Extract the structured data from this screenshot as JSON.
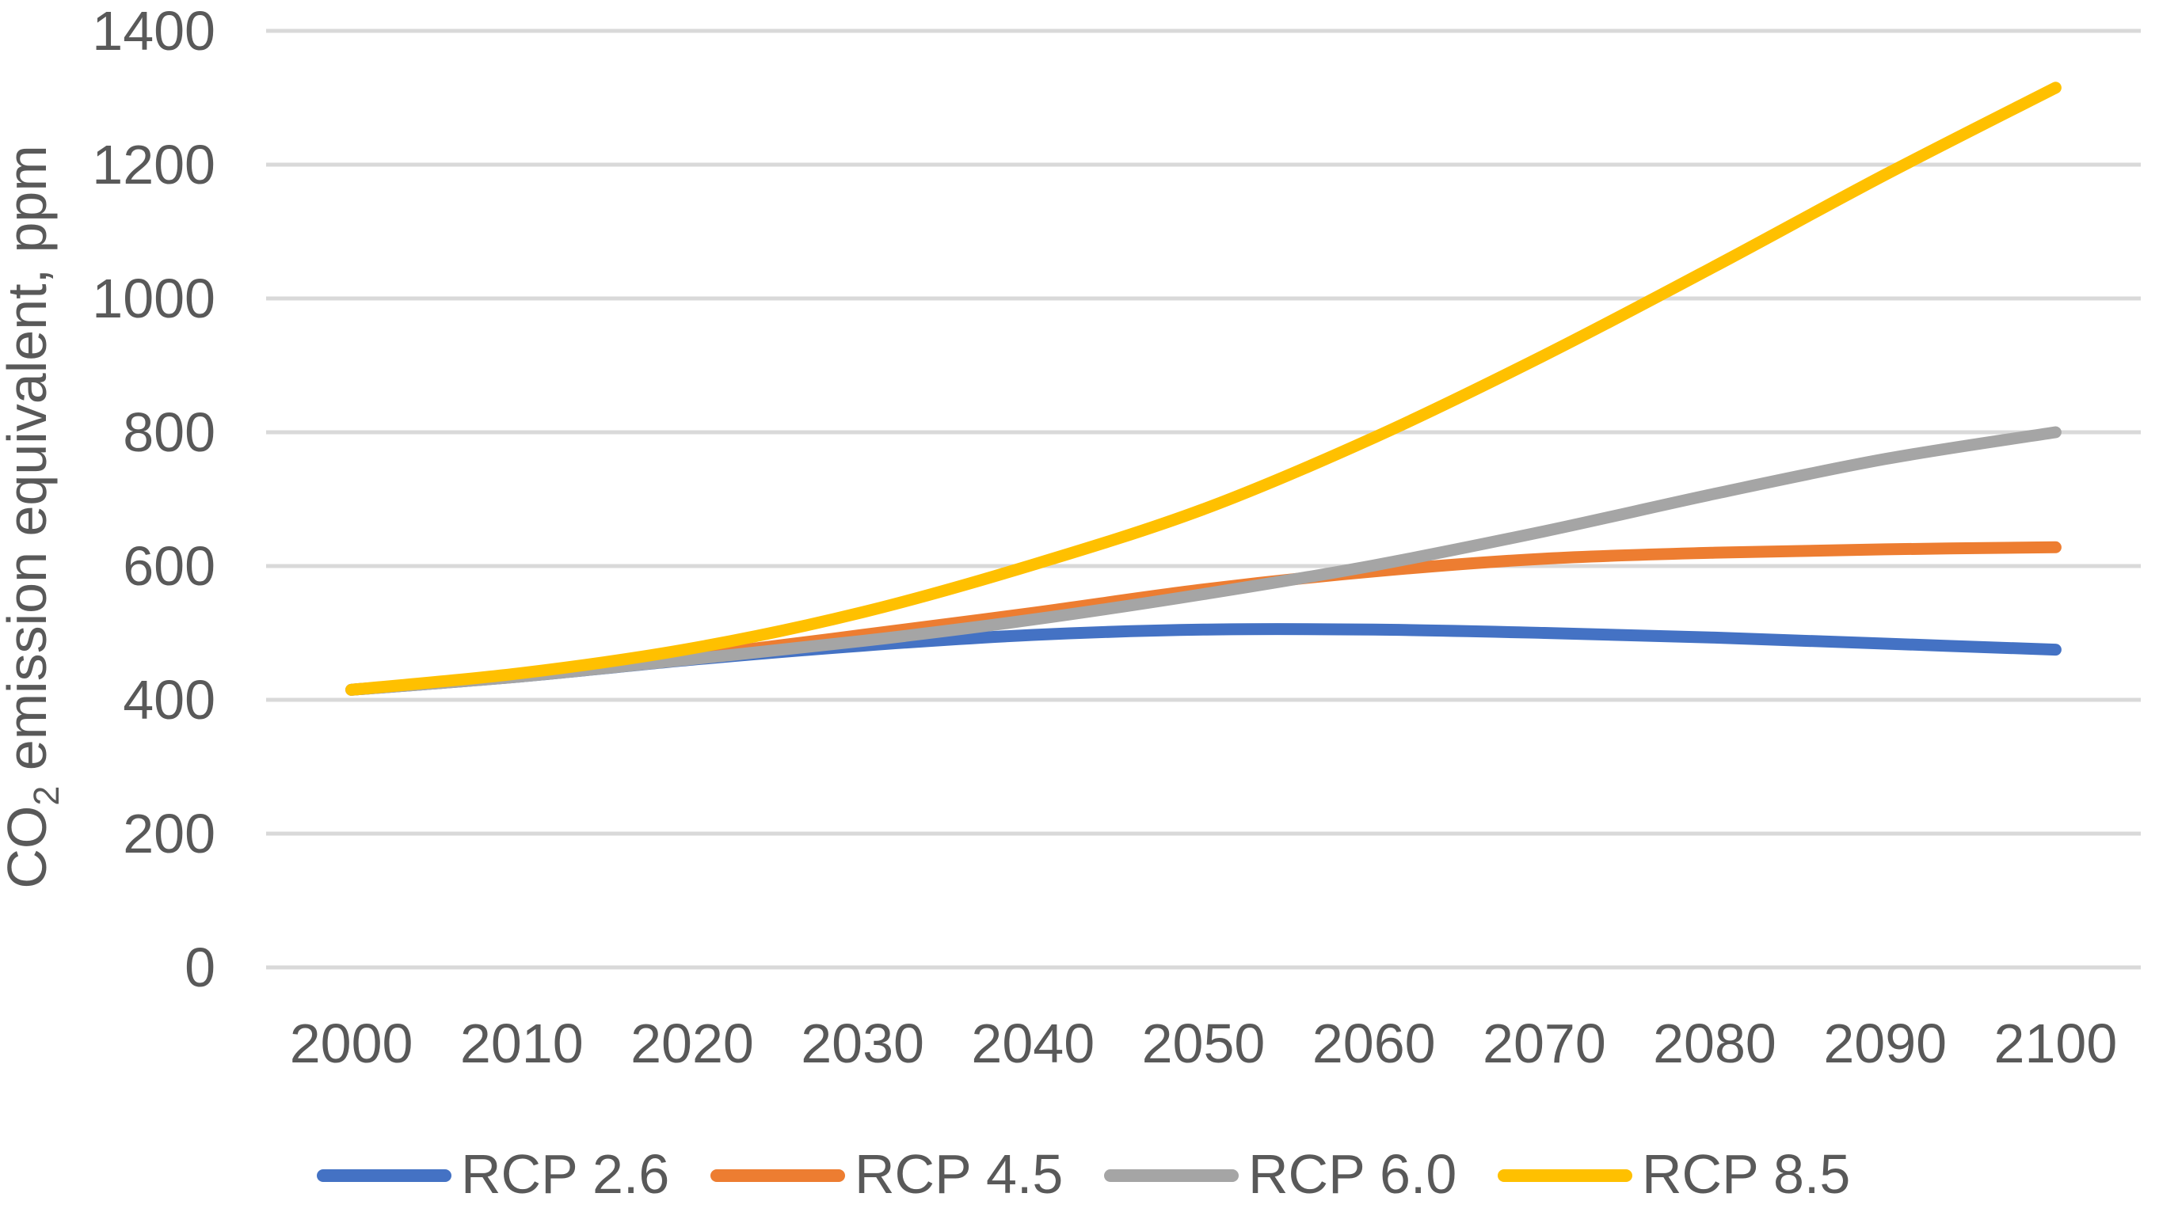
{
  "figure": {
    "background": "#FFFFFF"
  },
  "chart_data": {
    "type": "line",
    "title": "",
    "xlabel": "",
    "ylabel": "CO2 emission equivalent, ppm",
    "ylabel_rich": {
      "prefix": "CO",
      "subscript": "2",
      "suffix": " emission equivalent, ppm"
    },
    "x": [
      2000,
      2010,
      2020,
      2030,
      2040,
      2050,
      2060,
      2070,
      2080,
      2090,
      2100
    ],
    "x_tick_labels": [
      "2000",
      "2010",
      "2020",
      "2030",
      "2040",
      "2050",
      "2060",
      "2070",
      "2080",
      "2090",
      "2100"
    ],
    "y_ticks": [
      0,
      200,
      400,
      600,
      800,
      1000,
      1200,
      1400
    ],
    "y_tick_labels": [
      "0",
      "200",
      "400",
      "600",
      "800",
      "1000",
      "1200",
      "1400"
    ],
    "ylim": [
      0,
      1400
    ],
    "grid": "horizontal",
    "smooth_lines": true,
    "legend_position": "bottom",
    "series": [
      {
        "name": "RCP 2.6",
        "color": "#4472C4",
        "values": [
          415,
          435,
          460,
          481,
          497,
          505,
          505,
          500,
          493,
          484,
          475
        ]
      },
      {
        "name": "RCP 4.5",
        "color": "#ED7D31",
        "values": [
          415,
          437,
          465,
          497,
          530,
          565,
          592,
          611,
          620,
          625,
          628
        ]
      },
      {
        "name": "RCP 6.0",
        "color": "#A5A5A5",
        "values": [
          415,
          435,
          461,
          488,
          520,
          558,
          601,
          652,
          708,
          760,
          800
        ]
      },
      {
        "name": "RCP 8.5",
        "color": "#FFC000",
        "values": [
          415,
          440,
          477,
          531,
          602,
          685,
          792,
          915,
          1048,
          1185,
          1315
        ]
      }
    ],
    "colors": {
      "gridline": "#D9D9D9",
      "axis_text": "#595959",
      "background": "#FFFFFF"
    }
  }
}
